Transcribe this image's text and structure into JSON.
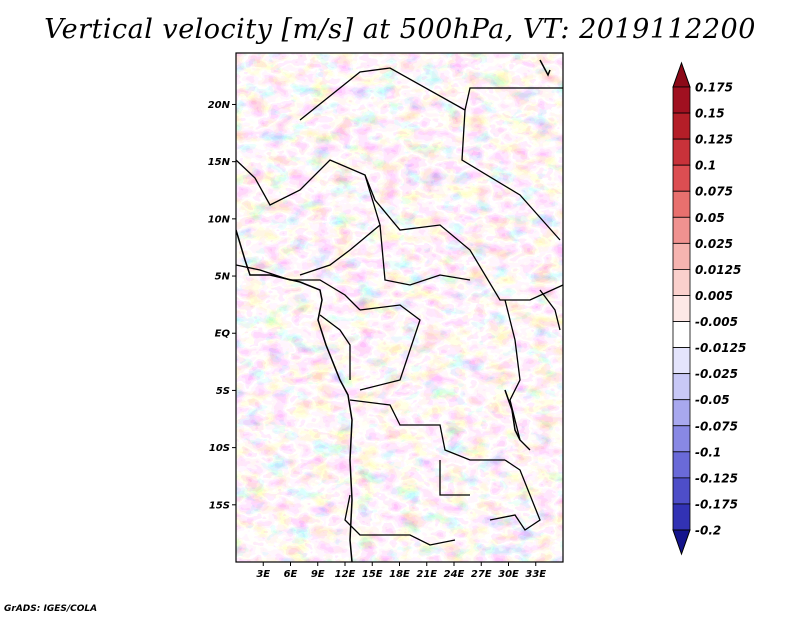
{
  "title": "Vertical velocity [m/s] at 500hPa, VT: 2019112200",
  "credit": "GrADS: IGES/COLA",
  "map": {
    "lon_range": [
      0,
      36
    ],
    "lat_range": [
      -20,
      24.5
    ],
    "lat_ticks": [
      {
        "value": 20,
        "label": "20N"
      },
      {
        "value": 15,
        "label": "15N"
      },
      {
        "value": 10,
        "label": "10N"
      },
      {
        "value": 5,
        "label": "5N"
      },
      {
        "value": 0,
        "label": "EQ"
      },
      {
        "value": -5,
        "label": "5S"
      },
      {
        "value": -10,
        "label": "10S"
      },
      {
        "value": -15,
        "label": "15S"
      }
    ],
    "lon_ticks": [
      {
        "value": 3,
        "label": "3E"
      },
      {
        "value": 6,
        "label": "6E"
      },
      {
        "value": 9,
        "label": "9E"
      },
      {
        "value": 12,
        "label": "12E"
      },
      {
        "value": 15,
        "label": "15E"
      },
      {
        "value": 18,
        "label": "18E"
      },
      {
        "value": 21,
        "label": "21E"
      },
      {
        "value": 24,
        "label": "24E"
      },
      {
        "value": 27,
        "label": "27E"
      },
      {
        "value": 30,
        "label": "30E"
      },
      {
        "value": 33,
        "label": "33E"
      }
    ]
  },
  "colorbar": {
    "levels": [
      {
        "label": "0.175",
        "color": "#a01020"
      },
      {
        "label": "0.15",
        "color": "#b41e28"
      },
      {
        "label": "0.125",
        "color": "#c8323a"
      },
      {
        "label": "0.1",
        "color": "#dc4e52"
      },
      {
        "label": "0.075",
        "color": "#e8706e"
      },
      {
        "label": "0.05",
        "color": "#f09290"
      },
      {
        "label": "0.025",
        "color": "#f6b4b0"
      },
      {
        "label": "0.0125",
        "color": "#fad0cc"
      },
      {
        "label": "0.005",
        "color": "#fde8e6"
      },
      {
        "label": "-0.005",
        "color": "#ffffff"
      },
      {
        "label": "-0.0125",
        "color": "#e4e4fc"
      },
      {
        "label": "-0.025",
        "color": "#c8c8f6"
      },
      {
        "label": "-0.05",
        "color": "#a8a8ee"
      },
      {
        "label": "-0.075",
        "color": "#8888e4"
      },
      {
        "label": "-0.1",
        "color": "#6a6ad8"
      },
      {
        "label": "-0.125",
        "color": "#4e4ec8"
      },
      {
        "label": "-0.175",
        "color": "#3232b4"
      },
      {
        "label": "-0.2",
        "color": "#1e1ea0"
      }
    ],
    "top_color": "#8c0a18",
    "bottom_color": "#14148c"
  }
}
